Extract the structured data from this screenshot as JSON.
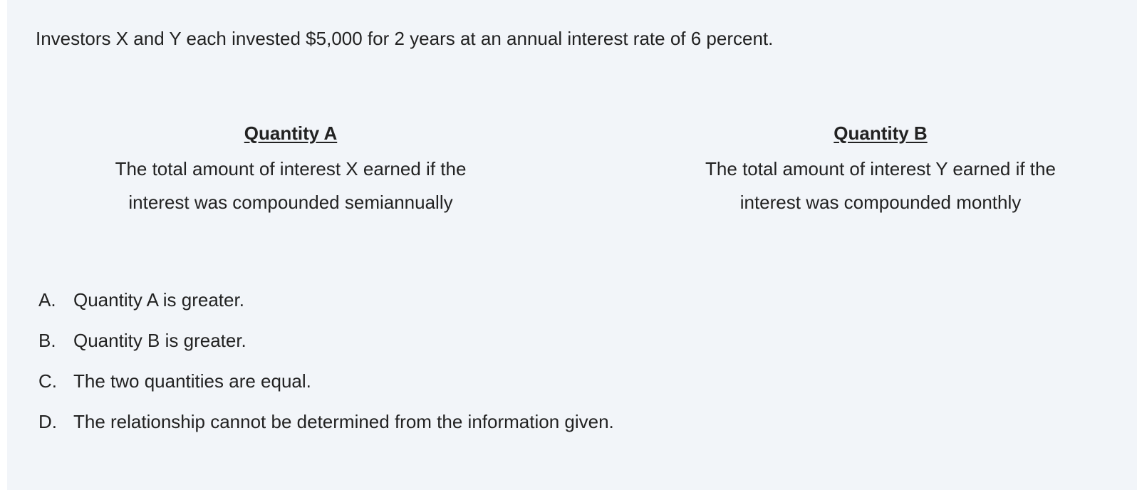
{
  "question": {
    "stem": "Investors X and Y each invested $5,000 for 2 years at an annual interest rate of 6 percent."
  },
  "quantity_a": {
    "title": "Quantity A",
    "text": "The total amount of interest X earned if the interest was compounded semiannually"
  },
  "quantity_b": {
    "title": "Quantity B",
    "text": "The total amount of interest Y earned if the interest was compounded monthly"
  },
  "choices": [
    {
      "letter": "A.",
      "text": "Quantity A is greater."
    },
    {
      "letter": "B.",
      "text": "Quantity B is greater."
    },
    {
      "letter": "C.",
      "text": "The two quantities are equal."
    },
    {
      "letter": "D.",
      "text": "The relationship cannot be determined from the information given."
    }
  ]
}
